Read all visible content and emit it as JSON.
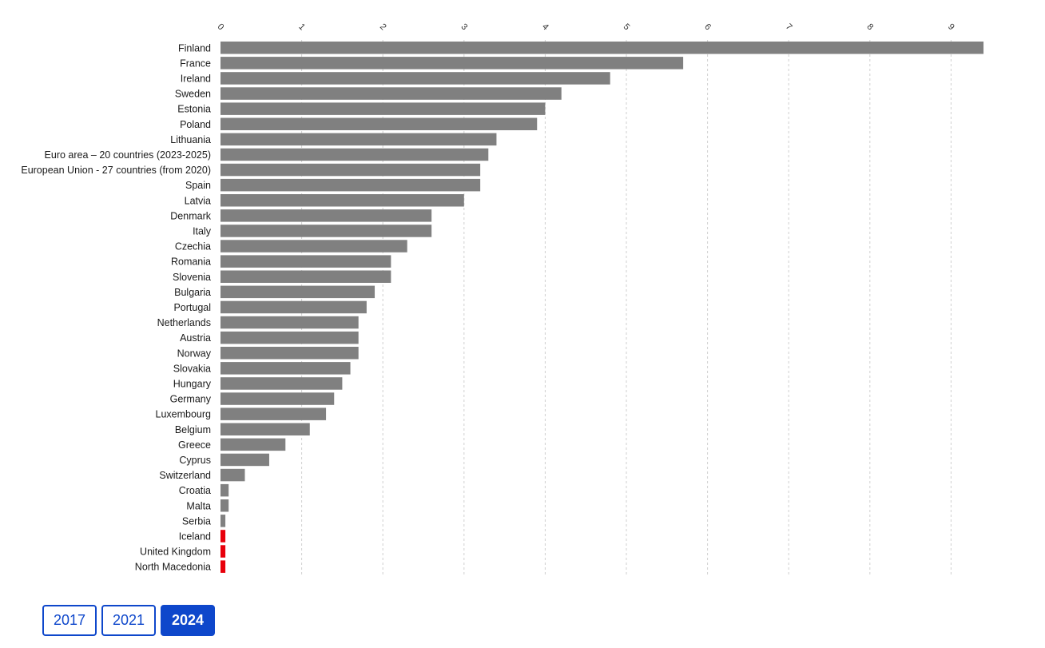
{
  "chart_data": {
    "type": "bar",
    "orientation": "horizontal",
    "x_axis_position": "top",
    "xlim": [
      0,
      9.5
    ],
    "x_ticks": [
      0,
      1,
      2,
      3,
      4,
      5,
      6,
      7,
      8,
      9
    ],
    "grid": true,
    "bar_color": "#808080",
    "highlight_color": "#e8000b",
    "categories": [
      "Finland",
      "France",
      "Ireland",
      "Sweden",
      "Estonia",
      "Poland",
      "Lithuania",
      "Euro area – 20 countries (2023-2025)",
      "European Union - 27 countries (from 2020)",
      "Spain",
      "Latvia",
      "Denmark",
      "Italy",
      "Czechia",
      "Romania",
      "Slovenia",
      "Bulgaria",
      "Portugal",
      "Netherlands",
      "Austria",
      "Norway",
      "Slovakia",
      "Hungary",
      "Germany",
      "Luxembourg",
      "Belgium",
      "Greece",
      "Cyprus",
      "Switzerland",
      "Croatia",
      "Malta",
      "Serbia",
      "Iceland",
      "United Kingdom",
      "North Macedonia"
    ],
    "values": [
      9.4,
      5.7,
      4.8,
      4.2,
      4.0,
      3.9,
      3.4,
      3.3,
      3.2,
      3.2,
      3.0,
      2.6,
      2.6,
      2.3,
      2.1,
      2.1,
      1.9,
      1.8,
      1.7,
      1.7,
      1.7,
      1.6,
      1.5,
      1.4,
      1.3,
      1.1,
      0.8,
      0.6,
      0.3,
      0.1,
      0.1,
      0.06,
      0.06,
      0.06,
      0.06
    ],
    "highlighted": [
      "Iceland",
      "United Kingdom",
      "North Macedonia"
    ]
  },
  "year_selector": {
    "years": [
      "2017",
      "2021",
      "2024"
    ],
    "selected": "2024"
  }
}
